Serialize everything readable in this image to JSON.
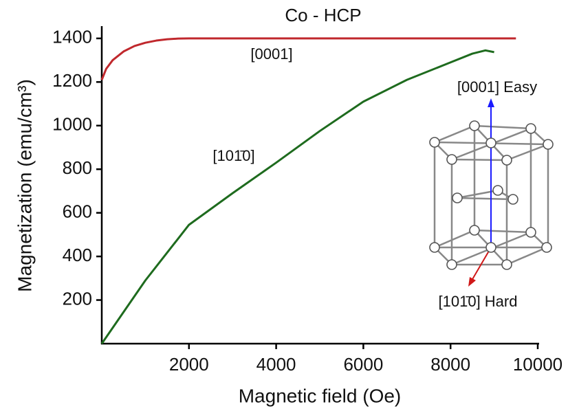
{
  "chart_data": {
    "type": "line",
    "title": "Co - HCP",
    "x_label": "Magnetic field (Oe)",
    "y_label": "Magnetization (emu/cm³)",
    "xlim": [
      0,
      10000
    ],
    "xticks": [
      2000,
      4000,
      6000,
      8000,
      10000
    ],
    "ylim": [
      0,
      1450
    ],
    "yticks": [
      200,
      400,
      600,
      800,
      1000,
      1200,
      1400
    ],
    "series": [
      {
        "name": "[0001]",
        "color": "#c0282d",
        "x": [
          0,
          100,
          250,
          500,
          750,
          1000,
          1250,
          1500,
          1750,
          2000,
          9500
        ],
        "values": [
          1210,
          1260,
          1300,
          1340,
          1365,
          1380,
          1390,
          1396,
          1399,
          1400,
          1400
        ]
      },
      {
        "name": "[101̄0]",
        "color": "#1e6b1e",
        "x": [
          0,
          1000,
          2000,
          3000,
          4000,
          5000,
          6000,
          7000,
          8000,
          8500,
          8800,
          9000
        ],
        "values": [
          0,
          290,
          545,
          690,
          830,
          975,
          1110,
          1210,
          1290,
          1330,
          1345,
          1337
        ]
      }
    ],
    "inset_labels": [
      "[0001] Easy",
      "[101̄0]  Hard"
    ]
  }
}
